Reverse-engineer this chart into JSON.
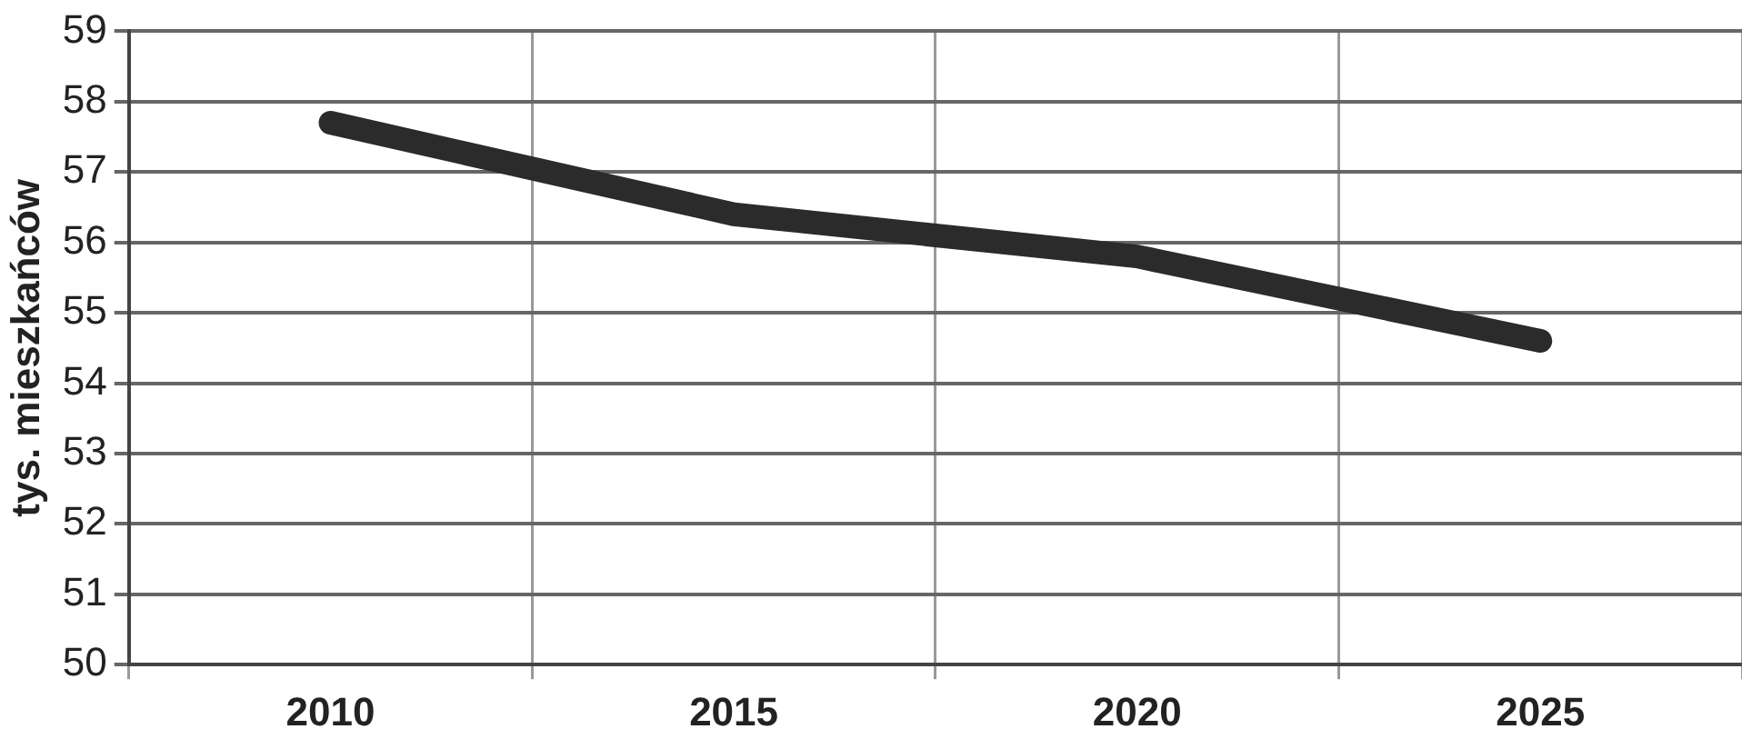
{
  "chart_data": {
    "type": "line",
    "ylabel": "tys. mieszkańców",
    "categories": [
      "2010",
      "2015",
      "2020",
      "2025"
    ],
    "series": [
      {
        "color": "#2b2b2b",
        "values": [
          57.7,
          56.4,
          55.8,
          54.6
        ]
      }
    ],
    "ylim": [
      50,
      59
    ],
    "yticks": [
      50,
      51,
      52,
      53,
      54,
      55,
      56,
      57,
      58,
      59
    ],
    "grid": true,
    "legend": false,
    "marker": "none",
    "line_style": "solid"
  }
}
